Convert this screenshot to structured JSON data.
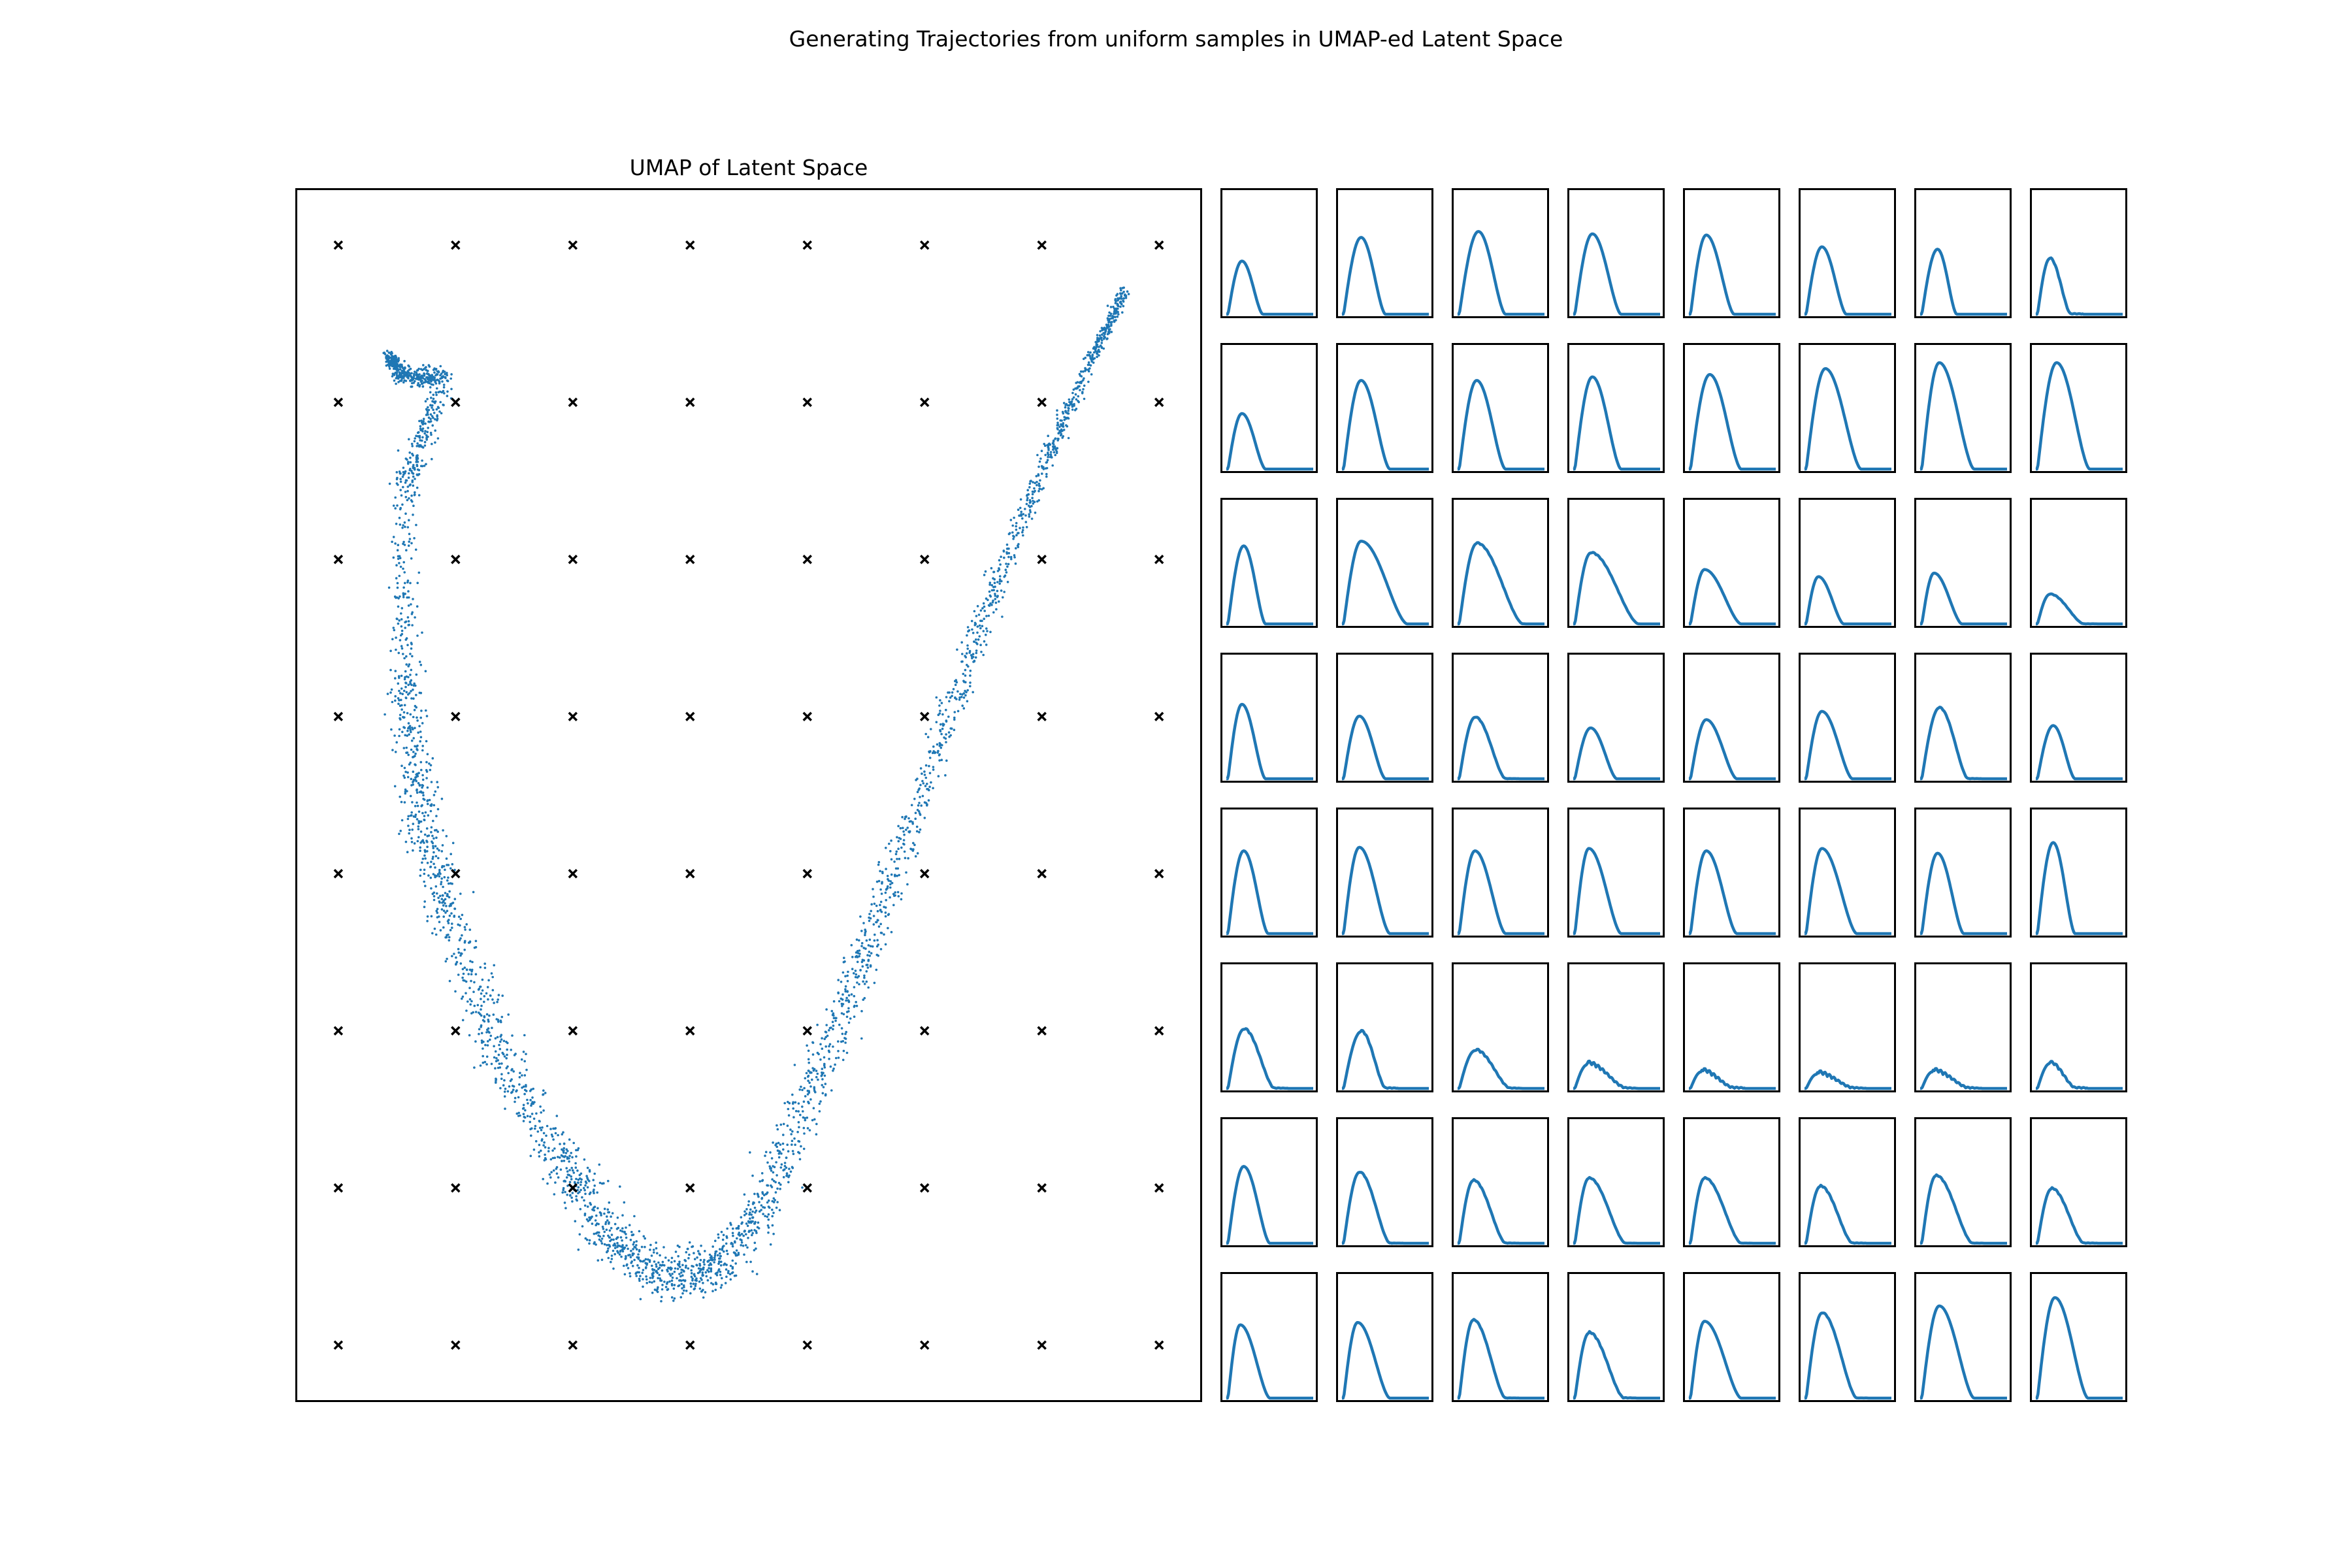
{
  "figure": {
    "title": "Generating Trajectories from uniform samples in UMAP-ed Latent Space"
  },
  "colors": {
    "scatter": "#1f77b4",
    "line": "#1f77b4",
    "grid_marker": "#000000",
    "frame": "#000000"
  },
  "chart_data": [
    {
      "type": "scatter",
      "title": "UMAP of Latent Space",
      "xlabel": "",
      "ylabel": "",
      "grid": false,
      "ticks": false,
      "series": [
        {
          "marker": "dot",
          "color": "#1f77b4",
          "description_shape": "U-shaped band of points",
          "backbone": [
            [
              0.06,
              0.9
            ],
            [
              0.08,
              0.88
            ],
            [
              0.13,
              0.88
            ],
            [
              0.08,
              0.78
            ],
            [
              0.08,
              0.6
            ],
            [
              0.1,
              0.48
            ],
            [
              0.14,
              0.38
            ],
            [
              0.2,
              0.26
            ],
            [
              0.27,
              0.17
            ],
            [
              0.33,
              0.1
            ],
            [
              0.4,
              0.06
            ],
            [
              0.46,
              0.07
            ],
            [
              0.52,
              0.13
            ],
            [
              0.58,
              0.24
            ],
            [
              0.65,
              0.37
            ],
            [
              0.72,
              0.52
            ],
            [
              0.79,
              0.67
            ],
            [
              0.86,
              0.8
            ],
            [
              0.92,
              0.9
            ],
            [
              0.96,
              0.96
            ]
          ],
          "point_count": 3500
        },
        {
          "marker": "x",
          "color": "#000000",
          "description_shape": "8 x 8 uniform sample grid",
          "x": [
            0.0,
            0.142857,
            0.285714,
            0.428571,
            0.571429,
            0.714286,
            0.857143,
            1.0
          ],
          "y": [
            1.0,
            0.857143,
            0.714286,
            0.571429,
            0.428571,
            0.285714,
            0.142857,
            0.0
          ]
        }
      ],
      "xlim": [
        -0.05,
        1.05
      ],
      "ylim": [
        -0.05,
        1.05
      ]
    },
    {
      "type": "line",
      "grid_rows": 8,
      "grid_cols": 8,
      "ticks": false,
      "xlim": [
        0,
        1
      ],
      "ylim": [
        0,
        1
      ],
      "curve_params_order": [
        "peak_position",
        "peak_height",
        "curve_end",
        "left_start",
        "wiggle"
      ],
      "panels": [
        [
          [
            0.18,
            0.45,
            0.42,
            0.02,
            0
          ],
          [
            0.22,
            0.65,
            0.5,
            0.02,
            0
          ],
          [
            0.24,
            0.7,
            0.55,
            0.02,
            0
          ],
          [
            0.22,
            0.68,
            0.55,
            0.02,
            0
          ],
          [
            0.2,
            0.67,
            0.52,
            0.02,
            0
          ],
          [
            0.2,
            0.57,
            0.48,
            0.02,
            0
          ],
          [
            0.2,
            0.55,
            0.42,
            0.02,
            0
          ],
          [
            0.16,
            0.47,
            0.4,
            0.02,
            0.1
          ]
        ],
        [
          [
            0.18,
            0.47,
            0.45,
            0.02,
            0
          ],
          [
            0.22,
            0.75,
            0.55,
            0.02,
            0
          ],
          [
            0.22,
            0.75,
            0.55,
            0.02,
            0
          ],
          [
            0.22,
            0.78,
            0.55,
            0.02,
            0
          ],
          [
            0.24,
            0.8,
            0.6,
            0.02,
            0
          ],
          [
            0.24,
            0.85,
            0.65,
            0.02,
            0
          ],
          [
            0.22,
            0.9,
            0.62,
            0.02,
            0
          ],
          [
            0.24,
            0.9,
            0.62,
            0.02,
            0
          ]
        ],
        [
          [
            0.2,
            0.66,
            0.45,
            0.02,
            0
          ],
          [
            0.22,
            0.7,
            0.75,
            0.02,
            0
          ],
          [
            0.22,
            0.68,
            0.75,
            0.02,
            0.08
          ],
          [
            0.2,
            0.6,
            0.75,
            0.02,
            0.08
          ],
          [
            0.18,
            0.46,
            0.6,
            0.02,
            0
          ],
          [
            0.16,
            0.4,
            0.45,
            0.02,
            0
          ],
          [
            0.16,
            0.43,
            0.48,
            0.02,
            0
          ],
          [
            0.16,
            0.25,
            0.55,
            0.02,
            0.05
          ]
        ],
        [
          [
            0.18,
            0.63,
            0.45,
            0.02,
            0
          ],
          [
            0.2,
            0.53,
            0.5,
            0.02,
            0
          ],
          [
            0.2,
            0.52,
            0.55,
            0.02,
            0.06
          ],
          [
            0.2,
            0.43,
            0.5,
            0.02,
            0
          ],
          [
            0.2,
            0.5,
            0.55,
            0.02,
            0
          ],
          [
            0.2,
            0.57,
            0.55,
            0.02,
            0
          ],
          [
            0.22,
            0.6,
            0.55,
            0.02,
            0.06
          ],
          [
            0.2,
            0.45,
            0.45,
            0.02,
            0
          ]
        ],
        [
          [
            0.2,
            0.7,
            0.48,
            0.02,
            0
          ],
          [
            0.2,
            0.73,
            0.55,
            0.02,
            0
          ],
          [
            0.2,
            0.7,
            0.55,
            0.02,
            0
          ],
          [
            0.18,
            0.72,
            0.55,
            0.02,
            0
          ],
          [
            0.2,
            0.7,
            0.55,
            0.02,
            0
          ],
          [
            0.2,
            0.72,
            0.6,
            0.02,
            0
          ],
          [
            0.2,
            0.68,
            0.5,
            0.02,
            0
          ],
          [
            0.2,
            0.77,
            0.45,
            0.02,
            0
          ]
        ],
        [
          [
            0.2,
            0.5,
            0.55,
            0.02,
            0.12
          ],
          [
            0.22,
            0.48,
            0.5,
            0.02,
            0.12
          ],
          [
            0.2,
            0.32,
            0.6,
            0.02,
            0.15
          ],
          [
            0.16,
            0.2,
            0.6,
            0.02,
            0.3
          ],
          [
            0.14,
            0.14,
            0.5,
            0.02,
            0.3
          ],
          [
            0.14,
            0.12,
            0.55,
            0.02,
            0.3
          ],
          [
            0.14,
            0.14,
            0.55,
            0.02,
            0.3
          ],
          [
            0.16,
            0.21,
            0.45,
            0.02,
            0.2
          ]
        ],
        [
          [
            0.2,
            0.65,
            0.5,
            0.02,
            0
          ],
          [
            0.2,
            0.6,
            0.55,
            0.02,
            0.06
          ],
          [
            0.18,
            0.53,
            0.55,
            0.02,
            0.08
          ],
          [
            0.18,
            0.55,
            0.6,
            0.02,
            0.06
          ],
          [
            0.18,
            0.55,
            0.6,
            0.02,
            0.06
          ],
          [
            0.18,
            0.48,
            0.55,
            0.02,
            0.1
          ],
          [
            0.18,
            0.57,
            0.6,
            0.02,
            0.08
          ],
          [
            0.18,
            0.46,
            0.55,
            0.02,
            0.1
          ]
        ],
        [
          [
            0.16,
            0.62,
            0.5,
            0.02,
            0
          ],
          [
            0.18,
            0.64,
            0.55,
            0.02,
            0
          ],
          [
            0.18,
            0.66,
            0.55,
            0.02,
            0.06
          ],
          [
            0.18,
            0.55,
            0.58,
            0.02,
            0.12
          ],
          [
            0.18,
            0.65,
            0.6,
            0.02,
            0
          ],
          [
            0.2,
            0.72,
            0.6,
            0.02,
            0.06
          ],
          [
            0.22,
            0.78,
            0.62,
            0.02,
            0
          ],
          [
            0.22,
            0.85,
            0.6,
            0.02,
            0
          ]
        ]
      ]
    }
  ]
}
